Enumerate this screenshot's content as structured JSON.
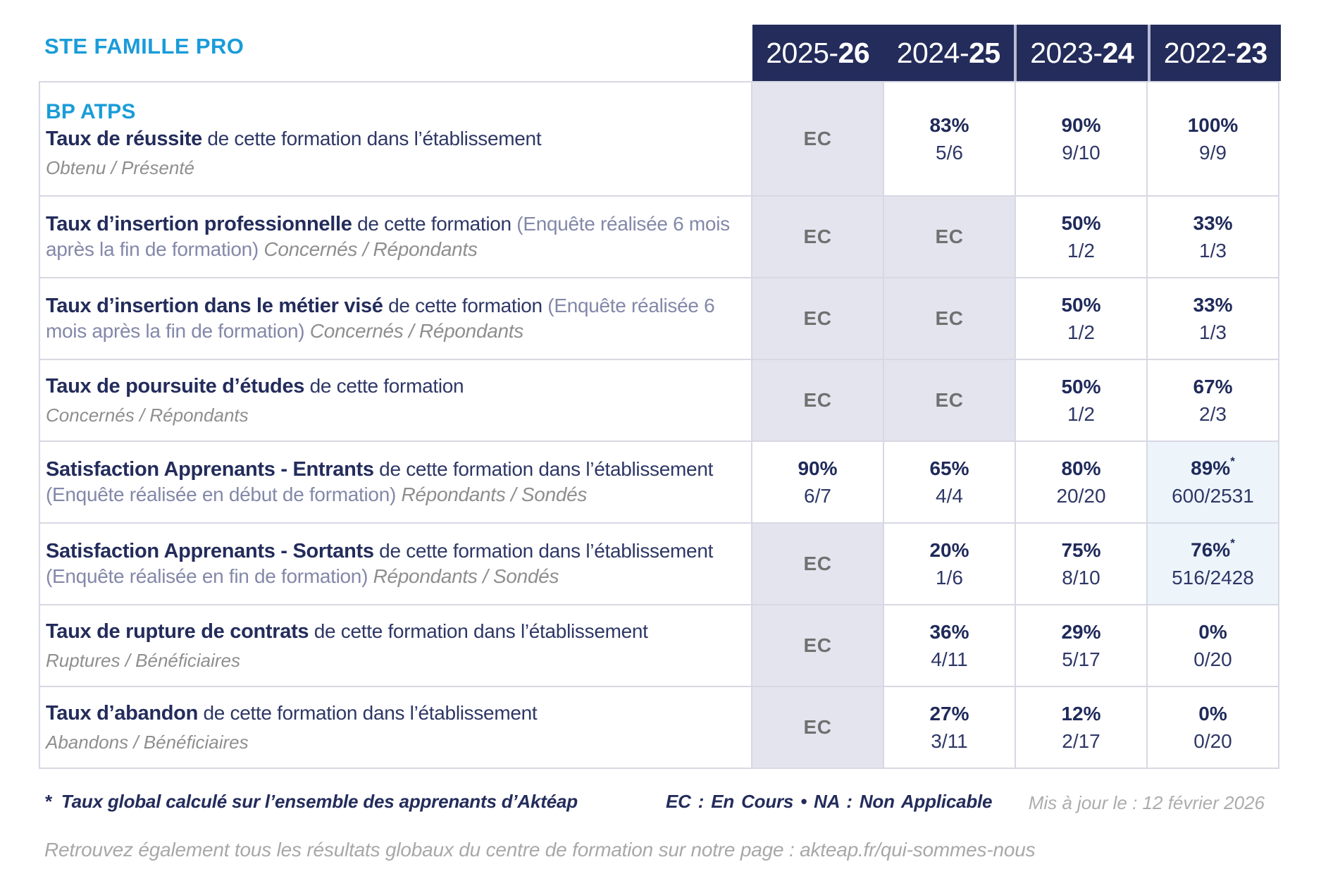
{
  "brand": {
    "name": "STE FAMILLE PRO"
  },
  "ec_label": "EC",
  "columns": [
    {
      "pre": "2025-",
      "bold": "26"
    },
    {
      "pre": "2024-",
      "bold": "25"
    },
    {
      "pre": "2023-",
      "bold": "24"
    },
    {
      "pre": "2022-",
      "bold": "23"
    }
  ],
  "rows": [
    {
      "program": "BP ATPS",
      "segments": [
        {
          "t": "Taux de réussite",
          "s": "bold"
        },
        {
          "t": " de cette formation dans l’établissement",
          "s": "reg"
        }
      ],
      "sub": "Obtenu / Présenté",
      "cells": [
        {
          "ec": true
        },
        {
          "pct": "83%",
          "frac": "5/6"
        },
        {
          "pct": "90%",
          "frac": "9/10"
        },
        {
          "pct": "100%",
          "frac": "9/9"
        }
      ]
    },
    {
      "segments": [
        {
          "t": "Taux d’insertion professionnelle",
          "s": "bold"
        },
        {
          "t": " de cette formation ",
          "s": "reg"
        },
        {
          "t": "(Enquête réalisée 6 mois après la fin de formation)",
          "s": "muted"
        },
        {
          "t": " Concernés / Répondants",
          "s": "ital"
        }
      ],
      "sub": "",
      "cells": [
        {
          "ec": true
        },
        {
          "ec": true
        },
        {
          "pct": "50%",
          "frac": "1/2"
        },
        {
          "pct": "33%",
          "frac": "1/3"
        }
      ]
    },
    {
      "segments": [
        {
          "t": "Taux d’insertion dans le métier visé",
          "s": "bold"
        },
        {
          "t": " de cette formation ",
          "s": "reg"
        },
        {
          "t": "(Enquête réalisée 6 mois après la fin de formation)",
          "s": "muted"
        },
        {
          "t": " Concernés / Répondants",
          "s": "ital"
        }
      ],
      "sub": "",
      "cells": [
        {
          "ec": true
        },
        {
          "ec": true
        },
        {
          "pct": "50%",
          "frac": "1/2"
        },
        {
          "pct": "33%",
          "frac": "1/3"
        }
      ]
    },
    {
      "segments": [
        {
          "t": "Taux de poursuite d’études",
          "s": "bold"
        },
        {
          "t": " de cette formation",
          "s": "reg"
        }
      ],
      "sub": "Concernés / Répondants",
      "cells": [
        {
          "ec": true
        },
        {
          "ec": true
        },
        {
          "pct": "50%",
          "frac": "1/2"
        },
        {
          "pct": "67%",
          "frac": "2/3"
        }
      ]
    },
    {
      "segments": [
        {
          "t": "Satisfaction Apprenants - Entrants",
          "s": "bold"
        },
        {
          "t": " de cette formation dans l’établissement ",
          "s": "reg"
        },
        {
          "t": "(Enquête réalisée en début de formation)",
          "s": "muted"
        },
        {
          "t": " Répondants / Sondés",
          "s": "ital"
        }
      ],
      "sub": "",
      "cells": [
        {
          "pct": "90%",
          "frac": "6/7"
        },
        {
          "pct": "65%",
          "frac": "4/4"
        },
        {
          "pct": "80%",
          "frac": "20/20"
        },
        {
          "pct": "89%",
          "frac": "600/2531",
          "star": true,
          "hl": true
        }
      ]
    },
    {
      "segments": [
        {
          "t": "Satisfaction Apprenants - Sortants",
          "s": "bold"
        },
        {
          "t": " de cette formation dans l’établissement ",
          "s": "reg"
        },
        {
          "t": "(Enquête réalisée en fin de formation)",
          "s": "muted"
        },
        {
          "t": " Répondants / Sondés",
          "s": "ital"
        }
      ],
      "sub": "",
      "cells": [
        {
          "ec": true
        },
        {
          "pct": "20%",
          "frac": "1/6"
        },
        {
          "pct": "75%",
          "frac": "8/10"
        },
        {
          "pct": "76%",
          "frac": "516/2428",
          "star": true,
          "hl": true
        }
      ]
    },
    {
      "segments": [
        {
          "t": "Taux de rupture de contrats",
          "s": "bold"
        },
        {
          "t": " de cette formation dans l’établissement",
          "s": "reg"
        }
      ],
      "sub": "Ruptures / Bénéficiaires",
      "cells": [
        {
          "ec": true
        },
        {
          "pct": "36%",
          "frac": "4/11"
        },
        {
          "pct": "29%",
          "frac": "5/17"
        },
        {
          "pct": "0%",
          "frac": "0/20"
        }
      ]
    },
    {
      "segments": [
        {
          "t": "Taux d’abandon",
          "s": "bold"
        },
        {
          "t": " de cette formation dans l’établissement",
          "s": "reg"
        }
      ],
      "sub": "Abandons / Bénéficiaires",
      "cells": [
        {
          "ec": true
        },
        {
          "pct": "27%",
          "frac": "3/11"
        },
        {
          "pct": "12%",
          "frac": "2/17"
        },
        {
          "pct": "0%",
          "frac": "0/20"
        }
      ]
    }
  ],
  "footer": {
    "star": "*",
    "note": "Taux global calculé sur l’ensemble des apprenants d’Aktéap",
    "legend": "EC : En Cours  •  NA : Non Applicable",
    "updated": "Mis à jour le : 12 février 2026",
    "bottom": "Retrouvez également tous les résultats globaux du centre de formation sur notre page : akteap.fr/qui-sommes-nous"
  },
  "colors": {
    "navy": "#232C5B",
    "accent_blue": "#1A9CD9",
    "ec_cell_bg": "#E4E4EF",
    "highlight_cell_bg": "#EDF5FB",
    "muted_paren": "#8388A9",
    "italic_gray": "#8E8E8E",
    "ec_text": "#707070",
    "border": "#D7D8E3",
    "footer_gray": "#ACACAC"
  }
}
